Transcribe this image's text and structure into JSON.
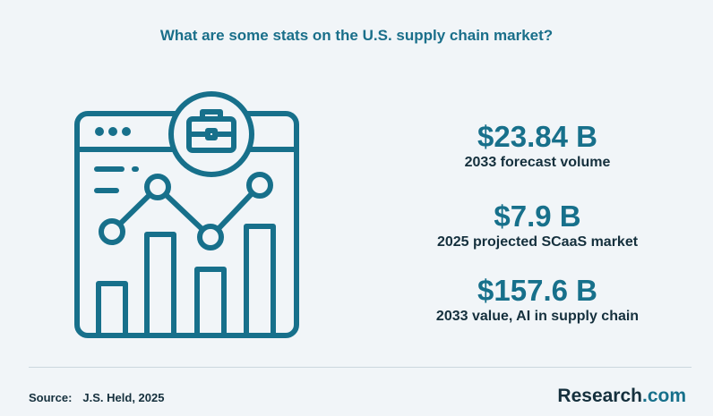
{
  "title": "What are some stats on the U.S. supply chain market?",
  "illustration": {
    "icon": "browser-chart-briefcase-icon",
    "stroke_color": "#17708b"
  },
  "stats": [
    {
      "value": "$23.84 B",
      "label": "2033 forecast volume"
    },
    {
      "value": "$7.9 B",
      "label": "2025 projected SCaaS market"
    },
    {
      "value": "$157.6 B",
      "label": "2033 value, AI in supply chain"
    }
  ],
  "footer": {
    "source_label": "Source:",
    "source_value": "J.S. Held, 2025",
    "brand_main": "Research",
    "brand_accent": ".com"
  },
  "colors": {
    "accent": "#17708b",
    "text": "#15303d",
    "background": "#f1f5f8"
  }
}
